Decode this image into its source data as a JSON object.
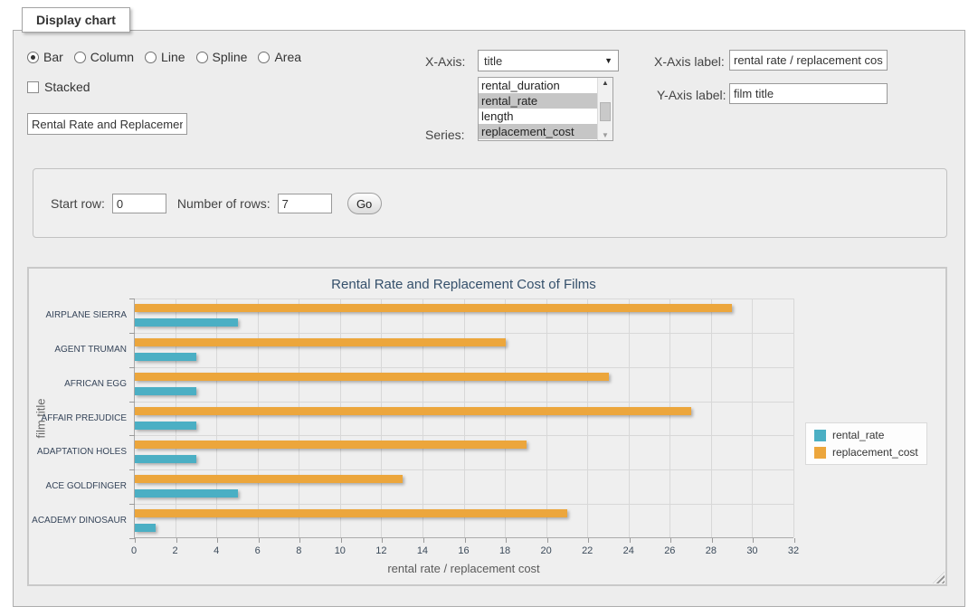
{
  "window": {
    "legend": "Display chart"
  },
  "chart_type": {
    "options": [
      {
        "label": "Bar",
        "selected": true
      },
      {
        "label": "Column",
        "selected": false
      },
      {
        "label": "Line",
        "selected": false
      },
      {
        "label": "Spline",
        "selected": false
      },
      {
        "label": "Area",
        "selected": false
      }
    ]
  },
  "stacked": {
    "label": "Stacked",
    "checked": false
  },
  "chart_title_input": {
    "value": "Rental Rate and Replacement Cost of Films"
  },
  "x_axis": {
    "label": "X-Axis:",
    "selected": "title"
  },
  "series_select": {
    "label": "Series:",
    "options": [
      {
        "name": "rental_duration",
        "selected": false
      },
      {
        "name": "rental_rate",
        "selected": true
      },
      {
        "name": "length",
        "selected": false
      },
      {
        "name": "replacement_cost",
        "selected": true
      }
    ]
  },
  "axis_labels": {
    "x_caption": "X-Axis label:",
    "x_value": "rental rate / replacement cost",
    "y_caption": "Y-Axis label:",
    "y_value": "film title"
  },
  "row_controls": {
    "start_row_label": "Start row:",
    "start_row_value": "0",
    "num_rows_label": "Number of rows:",
    "num_rows_value": "7",
    "go_label": "Go"
  },
  "chart_data": {
    "type": "bar",
    "orientation": "horizontal",
    "title": "Rental Rate and Replacement Cost of Films",
    "xlabel": "rental rate / replacement cost",
    "ylabel": "film title",
    "categories": [
      "AIRPLANE SIERRA",
      "AGENT TRUMAN",
      "AFRICAN EGG",
      "AFFAIR PREJUDICE",
      "ADAPTATION HOLES",
      "ACE GOLDFINGER",
      "ACADEMY DINOSAUR"
    ],
    "series": [
      {
        "name": "rental_rate",
        "color": "#4BAFC4",
        "values": [
          4.99,
          2.99,
          2.99,
          2.99,
          2.99,
          4.99,
          0.99
        ]
      },
      {
        "name": "replacement_cost",
        "color": "#ECA63C",
        "values": [
          28.99,
          17.99,
          22.99,
          26.99,
          18.99,
          12.99,
          20.99
        ]
      }
    ],
    "xlim": [
      0,
      32
    ],
    "xtick_step": 2,
    "grid": true,
    "legend_position": "right",
    "group_bar_order": "last_series_on_top"
  }
}
